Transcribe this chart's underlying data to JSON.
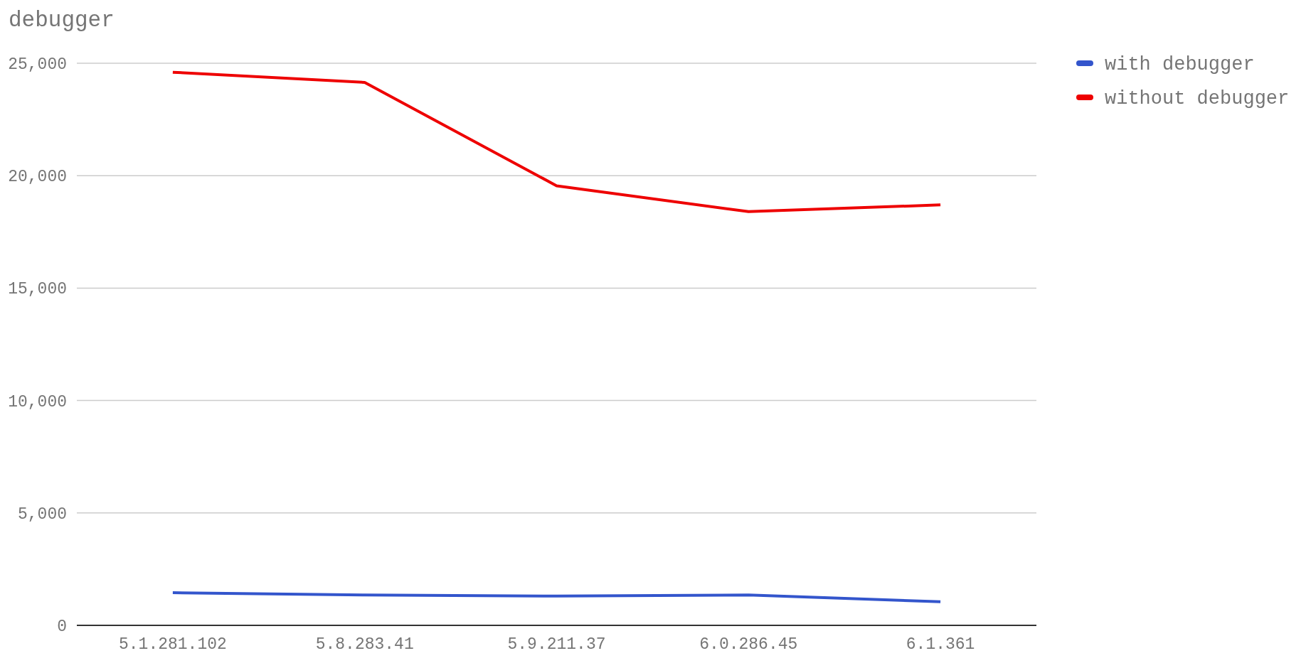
{
  "chart_data": {
    "type": "line",
    "title": "debugger",
    "categories": [
      "5.1.281.102",
      "5.8.283.41",
      "5.9.211.37",
      "6.0.286.45",
      "6.1.361"
    ],
    "series": [
      {
        "name": "with debugger",
        "color": "#3355cc",
        "values": [
          1450,
          1350,
          1300,
          1350,
          1050
        ]
      },
      {
        "name": "without debugger",
        "color": "#ee0000",
        "values": [
          24600,
          24150,
          19550,
          18400,
          18700
        ]
      }
    ],
    "ylim": [
      0,
      25000
    ],
    "yticks": [
      0,
      {
        "value": 5000,
        "label": "5,000"
      },
      {
        "value": 10000,
        "label": "10,000"
      },
      {
        "value": 15000,
        "label": "15,000"
      },
      {
        "value": 20000,
        "label": "20,000"
      },
      {
        "value": 25000,
        "label": "25,000"
      }
    ],
    "grid": "y",
    "legend": "top right",
    "line_style": "solid"
  }
}
